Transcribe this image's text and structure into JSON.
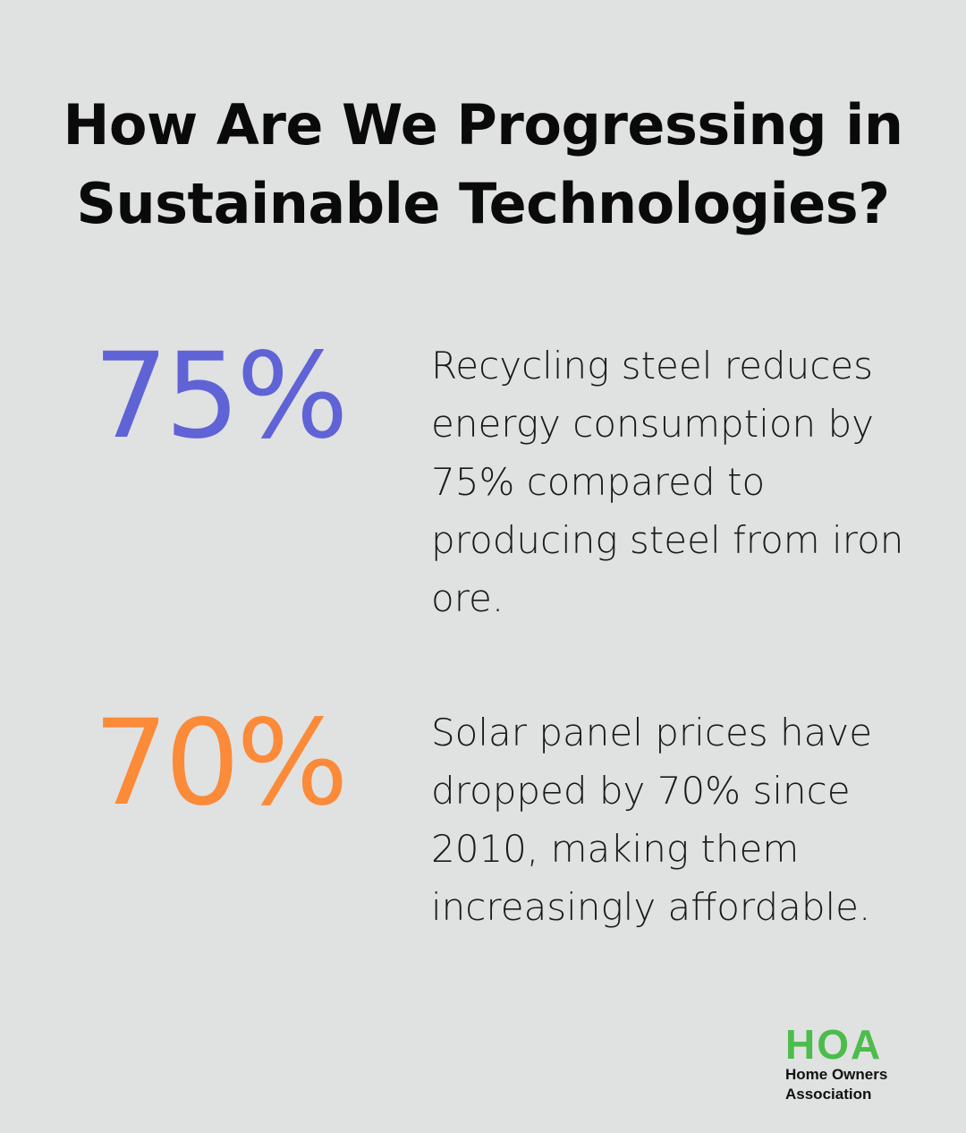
{
  "colors": {
    "background": "#e0e1e1",
    "stat_1": "#5f63d6",
    "stat_2": "#fb8a39",
    "logo_green": "#4cbc4c"
  },
  "title": {
    "line1": "How Are We Progressing in",
    "line2": "Sustainable Technologies?"
  },
  "stats": [
    {
      "value": "75%",
      "description": "Recycling steel reduces energy consumption by 75% compared to producing steel from iron ore."
    },
    {
      "value": "70%",
      "description": "Solar panel prices have dropped by 70% since 2010, making them increasingly affordable."
    }
  ],
  "logo": {
    "mark": "HOA",
    "line1": "Home Owners",
    "line2": "Association"
  }
}
